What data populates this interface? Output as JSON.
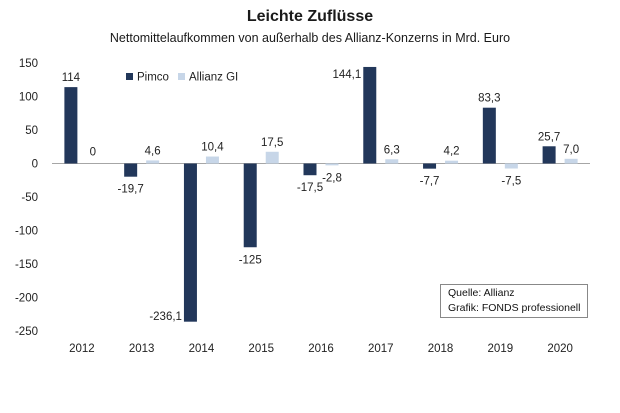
{
  "chart_data": {
    "type": "bar",
    "title": "Leichte Zuflüsse",
    "subtitle": "Nettomittelaufkommen von außerhalb des Allianz-Konzerns in Mrd. Euro",
    "categories": [
      "2012",
      "2013",
      "2014",
      "2015",
      "2016",
      "2017",
      "2018",
      "2019",
      "2020"
    ],
    "series": [
      {
        "name": "Pimco",
        "color": "#22375a",
        "values": [
          114,
          -19.7,
          -236.1,
          -125,
          -17.5,
          144.1,
          -7.7,
          83.3,
          25.7
        ],
        "labels": [
          "114",
          "-19,7",
          "-236,1",
          "-125",
          "-17,5",
          "144,1",
          "-7,7",
          "83,3",
          "25,7"
        ]
      },
      {
        "name": "Allianz GI",
        "color": "#c7d6e8",
        "values": [
          0,
          4.6,
          10.4,
          17.5,
          -2.8,
          6.3,
          4.2,
          -7.5,
          7.0
        ],
        "labels": [
          "0",
          "4,6",
          "10,4",
          "17,5",
          "-2,8",
          "6,3",
          "4,2",
          "-7,5",
          "7,0"
        ]
      }
    ],
    "yticks": [
      150,
      100,
      50,
      0,
      -50,
      -100,
      -150,
      -200,
      -250
    ],
    "ylim": [
      -250,
      150
    ],
    "legend_position": "top-left",
    "grid": false,
    "source": [
      "Quelle: Allianz",
      "Grafik: FONDS professionell"
    ]
  }
}
